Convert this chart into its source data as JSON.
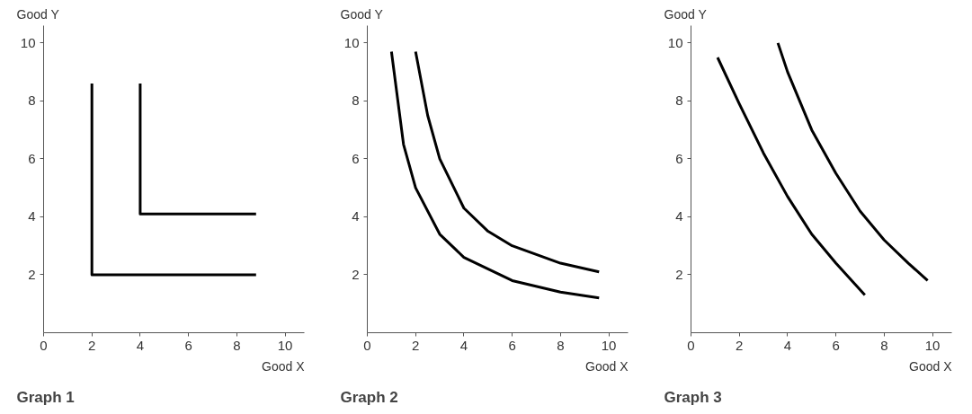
{
  "chart_data": [
    {
      "type": "line",
      "title": "Graph 1",
      "xlabel": "Good X",
      "ylabel": "Good Y",
      "xlim": [
        0,
        10.8
      ],
      "ylim": [
        0,
        10.6
      ],
      "xticks": [
        0,
        2,
        4,
        6,
        8,
        10
      ],
      "yticks": [
        2,
        4,
        6,
        8,
        10
      ],
      "grid": false,
      "series": [
        {
          "color": "#000000",
          "x": [
            2,
            2,
            8.8
          ],
          "values": [
            8.6,
            2,
            2
          ]
        },
        {
          "color": "#000000",
          "x": [
            4,
            4,
            8.8
          ],
          "values": [
            8.6,
            4.1,
            4.1
          ]
        }
      ]
    },
    {
      "type": "line",
      "title": "Graph 2",
      "xlabel": "Good X",
      "ylabel": "Good Y",
      "xlim": [
        0,
        10.8
      ],
      "ylim": [
        0,
        10.6
      ],
      "xticks": [
        0,
        2,
        4,
        6,
        8,
        10
      ],
      "yticks": [
        2,
        4,
        6,
        8,
        10
      ],
      "grid": false,
      "series": [
        {
          "color": "#000000",
          "x": [
            1,
            1.5,
            2,
            3,
            4,
            6,
            8,
            9.6
          ],
          "values": [
            9.7,
            6.5,
            5,
            3.4,
            2.6,
            1.8,
            1.4,
            1.2
          ]
        },
        {
          "color": "#000000",
          "x": [
            2,
            2.5,
            3,
            4,
            5,
            6,
            8,
            9.6
          ],
          "values": [
            9.7,
            7.5,
            6,
            4.3,
            3.5,
            3,
            2.4,
            2.1
          ]
        }
      ]
    },
    {
      "type": "line",
      "title": "Graph 3",
      "xlabel": "Good X",
      "ylabel": "Good Y",
      "xlim": [
        0,
        10.8
      ],
      "ylim": [
        0,
        10.6
      ],
      "xticks": [
        0,
        2,
        4,
        6,
        8,
        10
      ],
      "yticks": [
        2,
        4,
        6,
        8,
        10
      ],
      "grid": false,
      "series": [
        {
          "color": "#000000",
          "x": [
            1.1,
            2,
            3,
            4,
            5,
            6,
            7.2
          ],
          "values": [
            9.5,
            7.9,
            6.2,
            4.7,
            3.4,
            2.4,
            1.3
          ]
        },
        {
          "color": "#000000",
          "x": [
            3.6,
            4,
            5,
            6,
            7,
            8,
            9,
            9.8
          ],
          "values": [
            10,
            9,
            7,
            5.5,
            4.2,
            3.2,
            2.4,
            1.8
          ]
        }
      ]
    }
  ]
}
